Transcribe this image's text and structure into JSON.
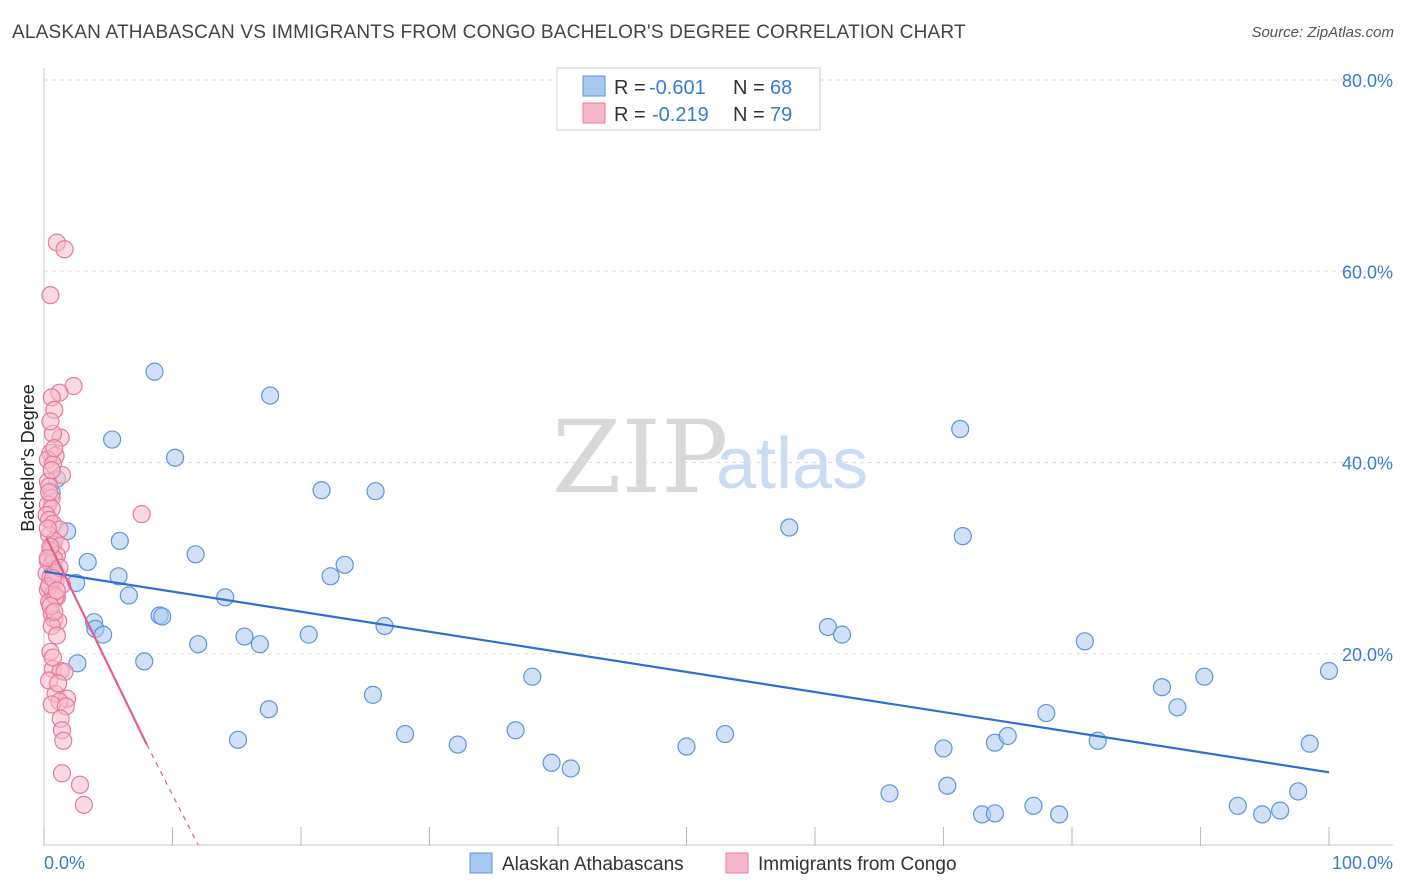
{
  "header": {
    "title": "ALASKAN ATHABASCAN VS IMMIGRANTS FROM CONGO BACHELOR'S DEGREE CORRELATION CHART",
    "source": "Source: ZipAtlas.com"
  },
  "watermark": {
    "zip": "ZIP",
    "atlas": "atlas"
  },
  "legend_top": {
    "rows": [
      {
        "r_label": "R =",
        "r_value": "-0.601",
        "n_label": "N =",
        "n_value": "68"
      },
      {
        "r_label": "R =",
        "r_value": "-0.219",
        "n_label": "N =",
        "n_value": "79"
      }
    ]
  },
  "legend_bottom": {
    "series1": "Alaskan Athabascans",
    "series2": "Immigrants from Congo"
  },
  "colors": {
    "blue_fill": "#a9c8f0",
    "blue_stroke": "#5f95d9",
    "blue_line": "#2f6fd0",
    "pink_fill": "#f6b9cb",
    "pink_stroke": "#e8799c",
    "pink_line": "#e0608a",
    "grid": "#dddddd",
    "tick_text": "#3a7bd5"
  },
  "chart_data": {
    "type": "scatter",
    "title": "ALASKAN ATHABASCAN VS IMMIGRANTS FROM CONGO BACHELOR'S DEGREE CORRELATION CHART",
    "xlabel": "",
    "ylabel": "Bachelor's Degree",
    "xlim": [
      0,
      100
    ],
    "ylim": [
      0,
      80
    ],
    "x_tick_labels": [
      "0.0%",
      "100.0%"
    ],
    "y_ticks": [
      20,
      40,
      60,
      80
    ],
    "y_tick_labels": [
      "20.0%",
      "40.0%",
      "60.0%",
      "80.0%"
    ],
    "grid": true,
    "series": [
      {
        "name": "Alaskan Athabascans",
        "r": -0.601,
        "n": 68,
        "trend": {
          "x": [
            0,
            100
          ],
          "y": [
            28.6,
            7.6
          ]
        },
        "points": [
          [
            0.6,
            36.8
          ],
          [
            0.7,
            31.4
          ],
          [
            1.0,
            38.3
          ],
          [
            1.8,
            32.8
          ],
          [
            2.5,
            27.4
          ],
          [
            2.6,
            19.0
          ],
          [
            3.4,
            29.6
          ],
          [
            3.9,
            23.3
          ],
          [
            4.0,
            22.6
          ],
          [
            4.6,
            22.0
          ],
          [
            5.3,
            42.4
          ],
          [
            5.9,
            31.8
          ],
          [
            5.8,
            28.1
          ],
          [
            6.6,
            26.1
          ],
          [
            7.8,
            19.2
          ],
          [
            8.6,
            49.5
          ],
          [
            9.0,
            24.0
          ],
          [
            9.2,
            23.9
          ],
          [
            10.2,
            40.5
          ],
          [
            11.8,
            30.4
          ],
          [
            12.0,
            21.0
          ],
          [
            14.1,
            25.9
          ],
          [
            15.1,
            11.0
          ],
          [
            15.6,
            21.8
          ],
          [
            16.8,
            21.0
          ],
          [
            17.5,
            14.2
          ],
          [
            17.6,
            47.0
          ],
          [
            20.6,
            22.0
          ],
          [
            21.6,
            37.1
          ],
          [
            22.3,
            28.1
          ],
          [
            23.4,
            29.3
          ],
          [
            25.6,
            15.7
          ],
          [
            25.8,
            37.0
          ],
          [
            26.5,
            22.9
          ],
          [
            28.1,
            11.6
          ],
          [
            32.2,
            10.5
          ],
          [
            36.7,
            12.0
          ],
          [
            38.0,
            17.6
          ],
          [
            39.5,
            8.6
          ],
          [
            41.0,
            8.0
          ],
          [
            50.0,
            10.3
          ],
          [
            53.0,
            11.6
          ],
          [
            58.0,
            33.2
          ],
          [
            61.0,
            22.8
          ],
          [
            62.1,
            22.0
          ],
          [
            65.8,
            5.4
          ],
          [
            70.0,
            10.1
          ],
          [
            70.3,
            6.2
          ],
          [
            71.3,
            43.5
          ],
          [
            71.5,
            32.3
          ],
          [
            73.0,
            3.2
          ],
          [
            74.0,
            3.3
          ],
          [
            74.0,
            10.7
          ],
          [
            75.0,
            11.4
          ],
          [
            77.0,
            4.1
          ],
          [
            78.0,
            13.8
          ],
          [
            79.0,
            3.2
          ],
          [
            81.0,
            21.3
          ],
          [
            82.0,
            10.9
          ],
          [
            87.0,
            16.5
          ],
          [
            88.2,
            14.4
          ],
          [
            90.3,
            17.6
          ],
          [
            92.9,
            4.1
          ],
          [
            94.8,
            3.2
          ],
          [
            96.2,
            3.6
          ],
          [
            97.6,
            5.6
          ],
          [
            98.5,
            10.6
          ],
          [
            100.0,
            18.2
          ]
        ]
      },
      {
        "name": "Immigrants from Congo",
        "r": -0.219,
        "n": 79,
        "trend": {
          "x": [
            0.2,
            8.0
          ],
          "y": [
            32.1,
            10.5
          ]
        },
        "trend_extension": {
          "x": [
            8.0,
            12.0
          ],
          "y": [
            10.5,
            -0.5
          ]
        },
        "points": [
          [
            1.0,
            63.0
          ],
          [
            1.6,
            62.3
          ],
          [
            0.5,
            57.5
          ],
          [
            2.3,
            48.0
          ],
          [
            1.2,
            47.3
          ],
          [
            0.6,
            46.8
          ],
          [
            0.8,
            45.5
          ],
          [
            1.3,
            42.6
          ],
          [
            0.7,
            43.0
          ],
          [
            0.5,
            41.0
          ],
          [
            0.9,
            40.7
          ],
          [
            0.3,
            40.3
          ],
          [
            0.7,
            39.8
          ],
          [
            1.4,
            38.7
          ],
          [
            0.3,
            38.0
          ],
          [
            0.4,
            37.5
          ],
          [
            0.6,
            36.3
          ],
          [
            0.3,
            35.6
          ],
          [
            0.6,
            35.2
          ],
          [
            0.2,
            34.5
          ],
          [
            0.4,
            34.0
          ],
          [
            0.7,
            33.6
          ],
          [
            1.2,
            33.0
          ],
          [
            0.4,
            32.4
          ],
          [
            0.8,
            31.8
          ],
          [
            1.3,
            31.3
          ],
          [
            0.5,
            30.8
          ],
          [
            1.0,
            30.3
          ],
          [
            0.3,
            29.7
          ],
          [
            0.6,
            29.3
          ],
          [
            0.8,
            28.8
          ],
          [
            0.2,
            28.4
          ],
          [
            0.5,
            28.0
          ],
          [
            0.9,
            27.6
          ],
          [
            1.4,
            27.2
          ],
          [
            0.3,
            26.7
          ],
          [
            0.7,
            26.3
          ],
          [
            1.0,
            25.9
          ],
          [
            0.4,
            25.4
          ],
          [
            0.6,
            24.2
          ],
          [
            0.8,
            23.6
          ],
          [
            1.1,
            23.4
          ],
          [
            0.5,
            20.2
          ],
          [
            0.7,
            18.4
          ],
          [
            1.3,
            18.2
          ],
          [
            1.6,
            18.1
          ],
          [
            0.4,
            17.2
          ],
          [
            0.9,
            15.8
          ],
          [
            1.8,
            15.3
          ],
          [
            1.2,
            15.0
          ],
          [
            0.6,
            14.7
          ],
          [
            1.7,
            14.5
          ],
          [
            1.3,
            13.2
          ],
          [
            1.4,
            12.0
          ],
          [
            1.5,
            10.9
          ],
          [
            1.4,
            7.5
          ],
          [
            2.8,
            6.3
          ],
          [
            3.1,
            4.2
          ],
          [
            7.6,
            34.6
          ],
          [
            0.4,
            27.1
          ],
          [
            0.8,
            29.9
          ],
          [
            0.5,
            31.2
          ],
          [
            0.3,
            33.1
          ],
          [
            0.9,
            26.0
          ],
          [
            0.6,
            22.9
          ],
          [
            1.0,
            21.9
          ],
          [
            0.7,
            19.6
          ],
          [
            1.1,
            16.9
          ],
          [
            0.4,
            36.9
          ],
          [
            0.6,
            39.2
          ],
          [
            0.8,
            41.5
          ],
          [
            0.5,
            44.3
          ],
          [
            0.9,
            28.5
          ],
          [
            0.3,
            30.0
          ],
          [
            1.2,
            29.0
          ],
          [
            0.7,
            27.9
          ],
          [
            1.0,
            26.6
          ],
          [
            0.5,
            25.0
          ],
          [
            0.8,
            24.4
          ]
        ]
      }
    ]
  }
}
